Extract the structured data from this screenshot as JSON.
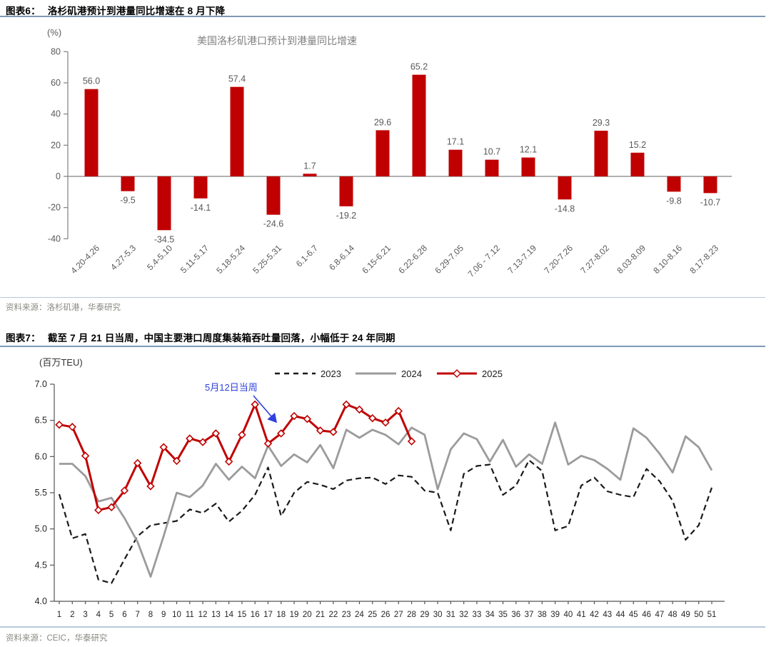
{
  "fig6": {
    "label": "图表6：",
    "title": "洛杉矶港预计到港量同比增速在 8 月下降",
    "source": "资料来源：洛杉矶港，华泰研究"
  },
  "fig7": {
    "label": "图表7：",
    "title": "截至 7 月 21 日当周，中国主要港口周度集装箱吞吐量回落，小幅低于 24 年同期",
    "source": "资料来源：CEIC，华泰研究"
  },
  "colors": {
    "bar_red": "#c00000",
    "line_2025_red": "#c00000",
    "line_2024_gray": "#9b9b9b",
    "line_2023_black": "#1a1a1a",
    "annotation_blue": "#2e41dd",
    "value_label_gray": "#595959",
    "axis_gray": "#808080",
    "chart_title_gray": "#808080"
  },
  "chart_data": [
    {
      "type": "bar",
      "title": "美国洛杉矶港口预计到港量同比增速",
      "unit_label": "(%)",
      "categories": [
        "4.20-4.26",
        "4.27-5.3",
        "5.4-5.10",
        "5.11-5.17",
        "5.18-5.24",
        "5.25-5.31",
        "6.1-6.7",
        "6.8-6.14",
        "6.15-6.21",
        "6.22-6.28",
        "6.29-7.05",
        "7.06 - 7.12",
        "7.13-7.19",
        "7.20-7.26",
        "7.27-8.02",
        "8.03-8.09",
        "8.10-8.16",
        "8.17-8.23"
      ],
      "values": [
        56.0,
        -9.5,
        -34.5,
        -14.1,
        57.4,
        -24.6,
        1.7,
        -19.2,
        29.6,
        65.2,
        17.1,
        10.7,
        12.1,
        -14.8,
        29.3,
        15.2,
        -9.8,
        -10.7
      ],
      "ylim": [
        -40,
        80
      ],
      "yticks": [
        80,
        60,
        40,
        20,
        0,
        -20,
        -40
      ],
      "grid": false,
      "value_labels": true,
      "x_tick_rotation": 45,
      "bar_color": "#c00000"
    },
    {
      "type": "line",
      "unit_label": "(百万TEU)",
      "xlabel": "",
      "ylabel": "",
      "ylim": [
        4.0,
        7.0
      ],
      "yticks": [
        7.0,
        6.5,
        6.0,
        5.5,
        5.0,
        4.5,
        4.0
      ],
      "grid": false,
      "legend_position": "top",
      "x": [
        1,
        2,
        3,
        4,
        5,
        6,
        7,
        8,
        9,
        10,
        11,
        12,
        13,
        14,
        15,
        16,
        17,
        18,
        19,
        20,
        21,
        22,
        23,
        24,
        25,
        26,
        27,
        28,
        29,
        30,
        31,
        32,
        33,
        34,
        35,
        36,
        37,
        38,
        39,
        40,
        41,
        42,
        43,
        44,
        45,
        46,
        47,
        48,
        49,
        50,
        51
      ],
      "series": [
        {
          "name": "2023",
          "style": "dashed",
          "color": "#1a1a1a",
          "values": [
            5.48,
            4.87,
            4.93,
            4.3,
            4.25,
            4.58,
            4.9,
            5.05,
            5.08,
            5.11,
            5.27,
            5.22,
            5.35,
            5.1,
            5.25,
            5.47,
            5.85,
            5.18,
            5.5,
            5.65,
            5.61,
            5.55,
            5.67,
            5.7,
            5.71,
            5.62,
            5.74,
            5.72,
            5.53,
            5.5,
            4.98,
            5.76,
            5.87,
            5.89,
            5.47,
            5.6,
            5.95,
            5.8,
            4.98,
            5.04,
            5.6,
            5.71,
            5.52,
            5.47,
            5.44,
            5.83,
            5.66,
            5.39,
            4.85,
            5.05,
            5.57
          ]
        },
        {
          "name": "2024",
          "style": "solid",
          "color": "#9b9b9b",
          "values": [
            5.9,
            5.9,
            5.73,
            5.38,
            5.43,
            5.15,
            4.82,
            4.34,
            4.9,
            5.5,
            5.44,
            5.6,
            5.9,
            5.68,
            5.86,
            5.7,
            6.15,
            5.87,
            6.03,
            5.92,
            6.16,
            5.84,
            6.37,
            6.26,
            6.37,
            6.3,
            6.17,
            6.4,
            6.3,
            5.55,
            6.1,
            6.32,
            6.24,
            5.93,
            6.23,
            5.86,
            6.03,
            5.9,
            6.47,
            5.89,
            6.01,
            5.95,
            5.83,
            5.68,
            6.39,
            6.26,
            6.04,
            5.78,
            6.28,
            6.13,
            5.81
          ]
        },
        {
          "name": "2025",
          "style": "solid-diamond",
          "color": "#c00000",
          "values": [
            6.44,
            6.41,
            6.01,
            5.26,
            5.3,
            5.53,
            5.91,
            5.59,
            6.13,
            5.94,
            6.25,
            6.2,
            6.32,
            5.93,
            6.3,
            6.72,
            6.18,
            6.32,
            6.56,
            6.52,
            6.36,
            6.34,
            6.72,
            6.65,
            6.53,
            6.47,
            6.63,
            6.21
          ]
        }
      ],
      "annotation": {
        "text": "5月12日当周",
        "color": "#2e41dd",
        "points_to_week": 18
      }
    }
  ]
}
